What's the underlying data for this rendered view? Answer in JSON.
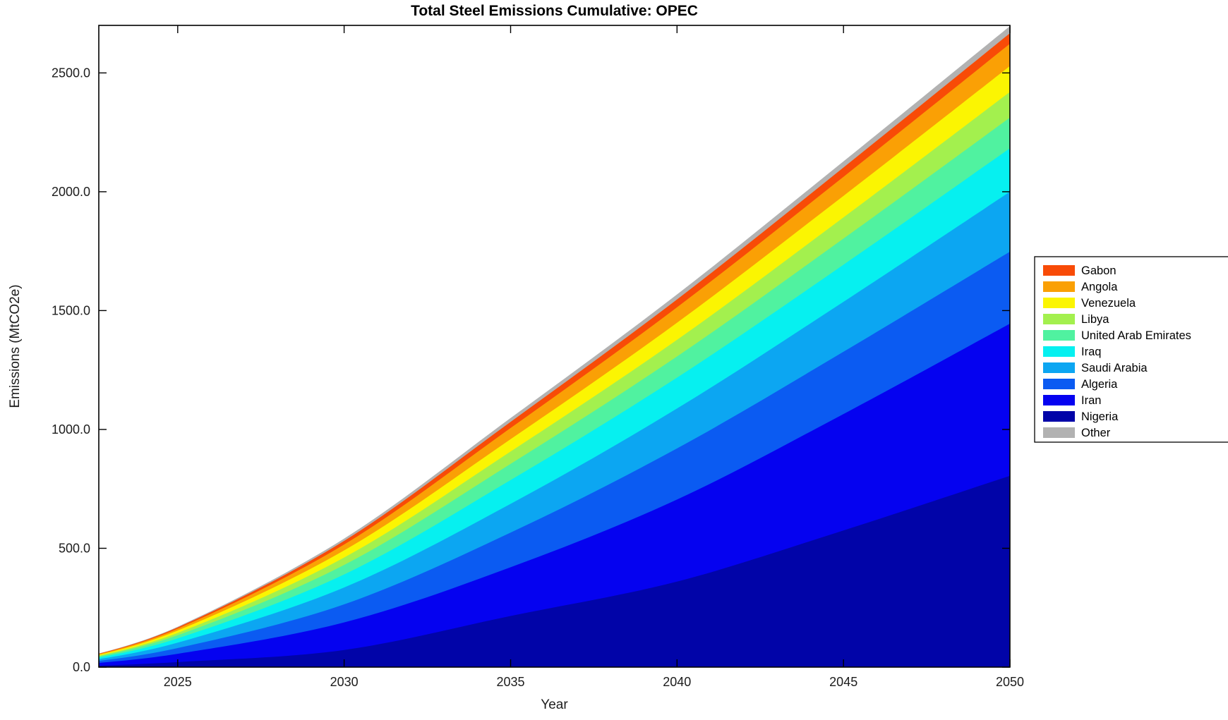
{
  "title": "Total Steel Emissions Cumulative: OPEC",
  "xlabel": "Year",
  "ylabel": "Emissions (MtCO2e)",
  "axis": {
    "x_tick_labels": [
      "2025",
      "2030",
      "2035",
      "2040",
      "2045",
      "2050"
    ],
    "x_tick_values": [
      2025,
      2030,
      2035,
      2040,
      2045,
      2050
    ],
    "y_tick_labels": [
      "0.0",
      "500.0",
      "1000.0",
      "1500.0",
      "2000.0",
      "2500.0"
    ],
    "y_tick_values": [
      0,
      500,
      1000,
      1500,
      2000,
      2500
    ],
    "frame_color": "#000000",
    "tick_label_color": "#1c1c1c"
  },
  "legend": {
    "order_top_to_bottom": [
      "Gabon",
      "Angola",
      "Venezuela",
      "Libya",
      "United Arab Emirates",
      "Iraq",
      "Saudi Arabia",
      "Algeria",
      "Iran",
      "Nigeria",
      "Other"
    ],
    "border_color": "#000000",
    "background": "#ffffff"
  },
  "chart_data": {
    "type": "area",
    "stacked": true,
    "title": "Total Steel Emissions Cumulative: OPEC",
    "xlabel": "Year",
    "ylabel": "Emissions (MtCO2e)",
    "grid": false,
    "legend_position": "right-outside",
    "xlim": [
      2022.63,
      2050
    ],
    "ylim": [
      0,
      2700
    ],
    "x": [
      2022,
      2025,
      2030,
      2035,
      2040,
      2045,
      2050
    ],
    "series_bottom_to_top": [
      {
        "name": "Nigeria",
        "color": "#0104a8",
        "values": [
          3,
          21,
          72,
          215,
          360,
          575,
          805
        ]
      },
      {
        "name": "Iran",
        "color": "#0502f0",
        "values": [
          7,
          35,
          116,
          205,
          345,
          490,
          640
        ]
      },
      {
        "name": "Algeria",
        "color": "#0b5bf2",
        "values": [
          5,
          24,
          76,
          146,
          215,
          262,
          303
        ]
      },
      {
        "name": "Saudi Arabia",
        "color": "#0ca6f2",
        "values": [
          4,
          23,
          71,
          121,
          168,
          210,
          252
        ]
      },
      {
        "name": "Iraq",
        "color": "#06f0f0",
        "values": [
          4,
          18,
          55,
          100,
          130,
          156,
          183
        ]
      },
      {
        "name": "United Arab Emirates",
        "color": "#50f2a0",
        "values": [
          3,
          13,
          40,
          68,
          89,
          110,
          129
        ]
      },
      {
        "name": "Libya",
        "color": "#a3f04e",
        "values": [
          2,
          10,
          31,
          52,
          70,
          89,
          108
        ]
      },
      {
        "name": "Venezuela",
        "color": "#fbf502",
        "values": [
          2,
          10,
          30,
          52,
          72,
          91,
          109
        ]
      },
      {
        "name": "Angola",
        "color": "#faa005",
        "values": [
          2,
          8,
          25,
          47,
          65,
          80,
          94
        ]
      },
      {
        "name": "Gabon",
        "color": "#f84b07",
        "values": [
          1,
          5,
          15,
          26,
          33,
          39,
          44
        ]
      },
      {
        "name": "Other",
        "color": "#b2b2b2",
        "values": [
          0.5,
          3,
          10,
          16,
          21,
          26,
          30
        ]
      }
    ],
    "totals_by_anchor_year": {
      "2022": 33.5,
      "2025": 170,
      "2030": 541,
      "2035": 1048,
      "2040": 1568,
      "2045": 2128,
      "2050": 2697
    }
  }
}
